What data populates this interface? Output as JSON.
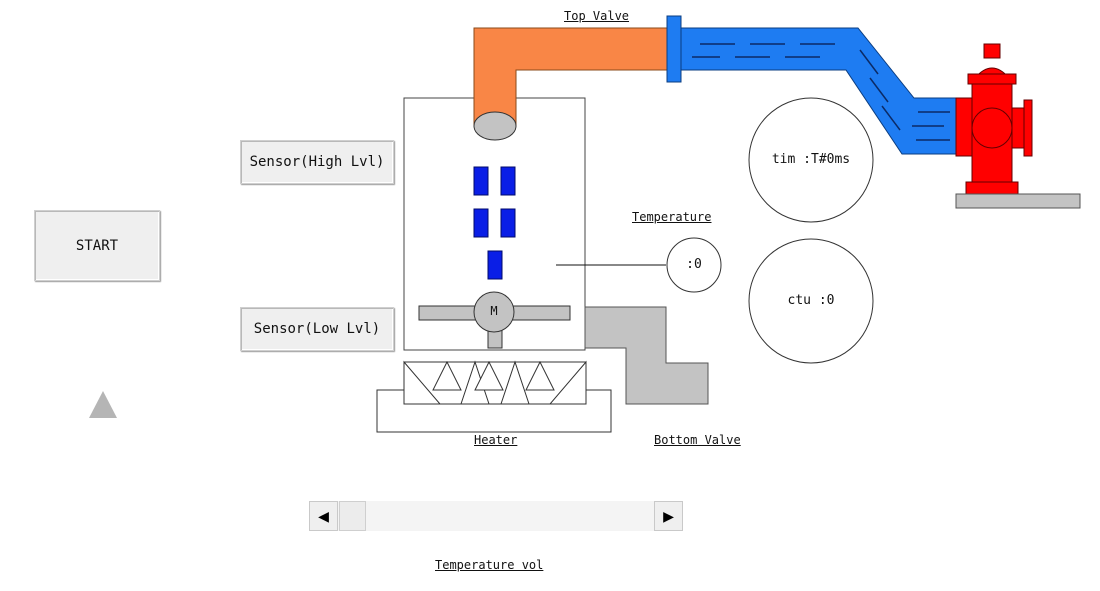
{
  "buttons": {
    "start": "START",
    "sensor_high": "Sensor(High Lvl)",
    "sensor_low": "Sensor(Low Lvl)"
  },
  "labels": {
    "top_valve": "Top Valve",
    "temperature": "Temperature",
    "heater": "Heater",
    "bottom_valve": "Bottom Valve",
    "temperature_vol": "Temperature vol"
  },
  "readouts": {
    "timer": "tim :T#0ms",
    "counter": "ctu :0",
    "temperature_value": ":0",
    "motor": "M"
  },
  "scrollbar": {
    "left_arrow": "◀",
    "right_arrow": "▶"
  },
  "colors": {
    "top_pipe": "#f98646",
    "water_pipe": "#1e7cf2",
    "hydrant": "#ff0000",
    "ingredient_blocks": "#0a1ee6",
    "valve_gray": "#c3c3c3"
  }
}
